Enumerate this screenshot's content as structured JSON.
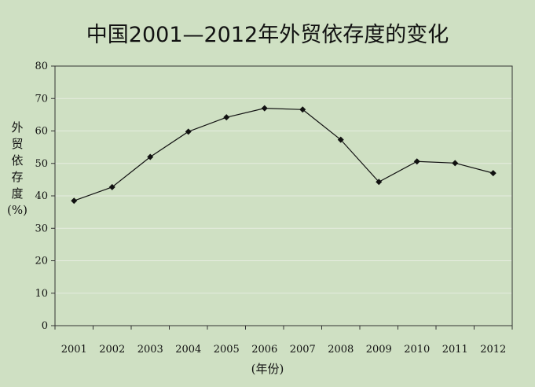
{
  "chart_data": {
    "type": "line",
    "title": "中国2001—2012年外贸依存度的变化",
    "ylabel_chars": [
      "外",
      "贸",
      "依",
      "存",
      "度",
      "(%)"
    ],
    "xlabel": "(年份)",
    "categories": [
      "2001",
      "2002",
      "2003",
      "2004",
      "2005",
      "2006",
      "2007",
      "2008",
      "2009",
      "2010",
      "2011",
      "2012"
    ],
    "series": [
      {
        "values": [
          38.5,
          42.7,
          52.0,
          59.8,
          64.2,
          67.0,
          66.6,
          57.3,
          44.3,
          50.6,
          50.1,
          47.0
        ]
      }
    ],
    "ylim": [
      0,
      80
    ],
    "yticks": [
      0,
      10,
      20,
      30,
      40,
      50,
      60,
      70,
      80
    ],
    "grid": "horizontal",
    "colors": {
      "background": "#cfe0c3",
      "line": "#111111",
      "grid": "#e6ece0"
    }
  }
}
